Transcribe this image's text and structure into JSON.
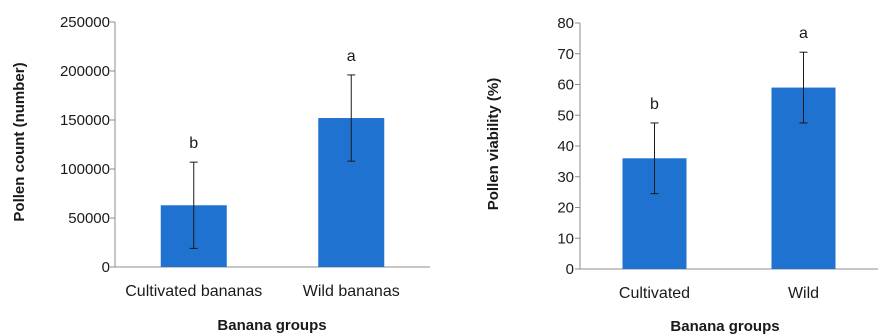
{
  "colors": {
    "bar": "#1f72d0",
    "axis": "#8c8c8c",
    "text": "#1a1a1a"
  },
  "chart_data": [
    {
      "type": "bar",
      "categories": [
        "Cultivated bananas",
        "Wild bananas"
      ],
      "values": [
        63000,
        152000
      ],
      "error_low": [
        19000,
        108000
      ],
      "error_high": [
        107000,
        196000
      ],
      "significance": [
        "b",
        "a"
      ],
      "xlabel": "Banana groups",
      "ylabel": "Pollen count (number)",
      "ylim": [
        0,
        250000
      ],
      "yticks": [
        0,
        50000,
        100000,
        150000,
        200000,
        250000
      ],
      "grid": false,
      "legend": "none"
    },
    {
      "type": "bar",
      "categories": [
        "Cultivated",
        "Wild"
      ],
      "values": [
        36,
        59
      ],
      "error_low": [
        24.5,
        47.5
      ],
      "error_high": [
        47.5,
        70.5
      ],
      "significance": [
        "b",
        "a"
      ],
      "xlabel": "Banana groups",
      "ylabel": "Pollen viability (%)",
      "ylim": [
        0,
        80
      ],
      "yticks": [
        0,
        10,
        20,
        30,
        40,
        50,
        60,
        70,
        80
      ],
      "grid": false,
      "legend": "none"
    }
  ]
}
